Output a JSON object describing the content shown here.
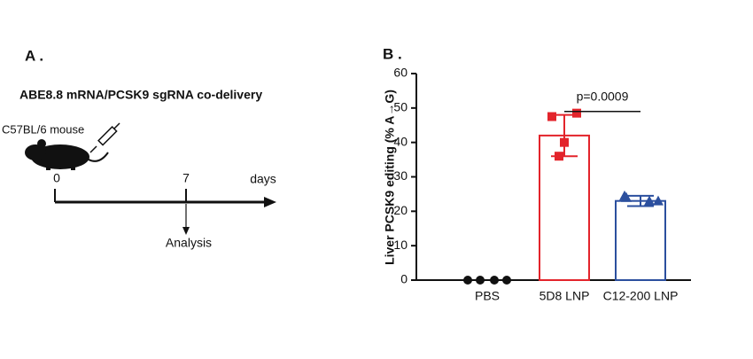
{
  "panel_a": {
    "label": "A .",
    "title": "ABE8.8 mRNA/PCSK9 sgRNA co-delivery",
    "subject": "C57BL/6 mouse",
    "timeline": {
      "ticks": [
        "0",
        "7"
      ],
      "unit": "days",
      "endpoint": "Analysis"
    }
  },
  "chart_data": {
    "type": "bar",
    "panel_label": "B .",
    "ylabel": "Liver PCSK9 editing (% A→G)",
    "categories": [
      "PBS",
      "5D8 LNP",
      "C12-200 LNP"
    ],
    "values": [
      0,
      42,
      23
    ],
    "errors": [
      0,
      6,
      1.5
    ],
    "points": [
      [
        0,
        0,
        0,
        0
      ],
      [
        47.5,
        48.5,
        40,
        36
      ],
      [
        24.5,
        23,
        23,
        24
      ]
    ],
    "colors": [
      "#111111",
      "#e3242b",
      "#2b4f9e"
    ],
    "markers": [
      "circle",
      "square",
      "triangle"
    ],
    "ylim": [
      0,
      60
    ],
    "yticks": [
      0,
      10,
      20,
      30,
      40,
      50,
      60
    ],
    "annotation": {
      "text": "p=0.0009",
      "from": 1,
      "to": 2,
      "y": 49
    }
  }
}
